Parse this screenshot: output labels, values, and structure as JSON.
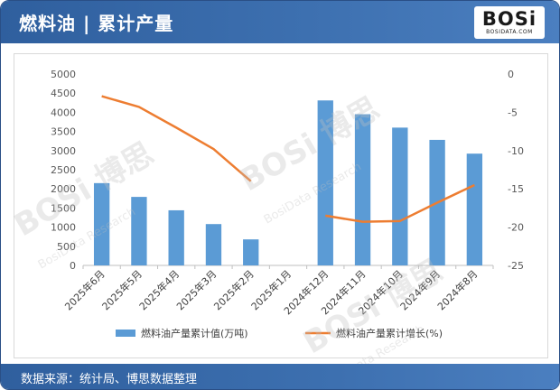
{
  "header": {
    "title": "燃料油 | 累计产量",
    "logo_text": "BOSi",
    "logo_subtext": "BOSIDATA.COM"
  },
  "footer": {
    "source": "数据来源：统计局、博思数据整理"
  },
  "watermark": {
    "brand": "BOSi 博思",
    "tagline": "BosiData Research"
  },
  "colors": {
    "header_bg": "#3566a8",
    "bar": "#5b9bd5",
    "line": "#ed7d31"
  },
  "chart_data": {
    "type": "bar",
    "categories": [
      "2025年6月",
      "2025年5月",
      "2025年4月",
      "2025年3月",
      "2025年2月",
      "2025年1月",
      "2024年12月",
      "2024年11月",
      "2024年10月",
      "2024年9月",
      "2024年8月"
    ],
    "series": [
      {
        "name": "燃料油产量累计值(万吨)",
        "type": "bar",
        "axis": "left",
        "values": [
          2150,
          1790,
          1440,
          1080,
          680,
          null,
          4310,
          3950,
          3600,
          3280,
          2920
        ]
      },
      {
        "name": "燃料油产量累计增长(%)",
        "type": "line",
        "axis": "right",
        "values": [
          -2.9,
          -4.3,
          -7.0,
          -9.8,
          -14.0,
          null,
          -18.5,
          -19.3,
          -19.2,
          -16.8,
          -14.5
        ]
      }
    ],
    "y_left": {
      "min": 0,
      "max": 5000,
      "ticks": [
        0,
        500,
        1000,
        1500,
        2000,
        2500,
        3000,
        3500,
        4000,
        4500,
        5000
      ]
    },
    "y_right": {
      "min": -25,
      "max": 0,
      "ticks": [
        0,
        -5,
        -10,
        -15,
        -20,
        -25
      ]
    },
    "grid": false,
    "legend_position": "bottom"
  }
}
